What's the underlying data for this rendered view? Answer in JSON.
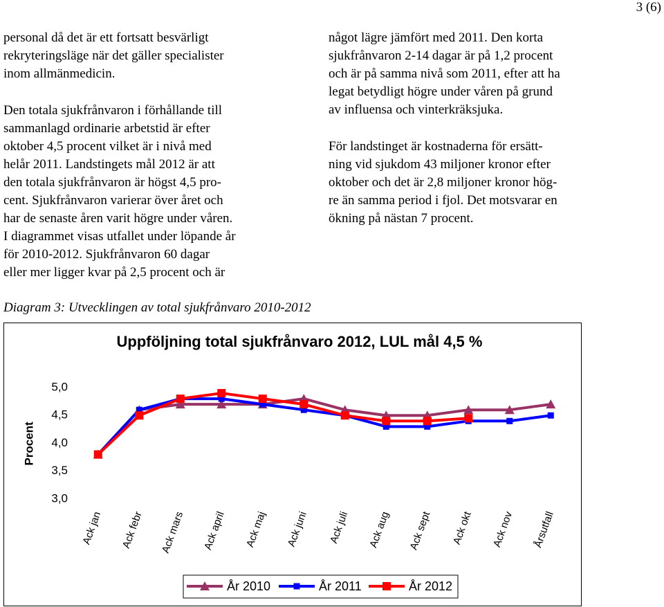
{
  "header": {
    "page_number": "3 (6)"
  },
  "left_column": {
    "paragraphs": [
      [
        "personal då det är ett fortsatt besvärligt",
        "rekryteringsläge när det gäller specialister",
        "inom allmänmedicin."
      ],
      [
        "Den totala sjukfrånvaron i förhållande till",
        "sammanlagd ordinarie arbetstid är efter",
        "oktober 4,5 procent vilket är i nivå med",
        "helår 2011. Landstingets mål 2012 är att",
        "den totala sjukfrånvaron är högst 4,5 pro-",
        "cent. Sjukfrånvaron varierar över året och",
        "har de senaste åren varit högre under våren.",
        "I diagrammet visas utfallet under löpande år",
        "för 2010-2012. Sjukfrånvaron 60 dagar",
        "eller mer ligger kvar på 2,5 procent och är"
      ]
    ]
  },
  "right_column": {
    "paragraphs": [
      [
        "något lägre jämfört med 2011. Den korta",
        "sjukfrånvaron 2-14 dagar är på 1,2 procent",
        "och är på samma nivå som 2011, efter att ha",
        "legat betydligt högre under våren på grund",
        "av influensa och vinterkräksjuka."
      ],
      [
        "För landstinget är kostnaderna för ersätt-",
        "ning vid sjukdom 43 miljoner kronor efter",
        "oktober och det är 2,8 miljoner kronor hög-",
        "re än samma period i fjol. Det motsvarar en",
        "ökning på nästan 7 procent."
      ]
    ]
  },
  "caption": "Diagram 3: Utvecklingen av total sjukfrånvaro 2010-2012",
  "chart_data": {
    "type": "line",
    "title": "Uppföljning total sjukfrånvaro 2012, LUL mål 4,5 %",
    "y_label": "Procent",
    "categories": [
      "Ack jan",
      "Ack febr",
      "Ack mars",
      "Ack april",
      "Ack maj",
      "Ack juni",
      "Ack juli",
      "Ack aug",
      "Ack sept",
      "Ack okt",
      "Ack nov",
      "Årsutfall"
    ],
    "series": [
      {
        "name": "År 2010",
        "color": "#993366",
        "marker": "triangle",
        "values": [
          3.8,
          4.6,
          4.7,
          4.7,
          4.7,
          4.8,
          4.6,
          4.5,
          4.5,
          4.6,
          4.6,
          4.7
        ]
      },
      {
        "name": "År 2011",
        "color": "#0000ff",
        "marker": "square",
        "values": [
          3.8,
          4.6,
          4.8,
          4.8,
          4.7,
          4.6,
          4.5,
          4.3,
          4.3,
          4.4,
          4.4,
          4.5
        ]
      },
      {
        "name": "År 2012",
        "color": "#ff0000",
        "marker": "square",
        "values": [
          3.8,
          4.5,
          4.8,
          4.9,
          4.8,
          4.7,
          4.5,
          4.4,
          4.4,
          4.45,
          null,
          null
        ]
      }
    ],
    "ylim": [
      3.0,
      5.0
    ],
    "yticks": [
      {
        "value": 3.0,
        "label": "3,0"
      },
      {
        "value": 3.5,
        "label": "3,5"
      },
      {
        "value": 4.0,
        "label": "4,0"
      },
      {
        "value": 4.5,
        "label": "4,5"
      },
      {
        "value": 5.0,
        "label": "5,0"
      }
    ],
    "grid": false,
    "legend": "bottom"
  }
}
